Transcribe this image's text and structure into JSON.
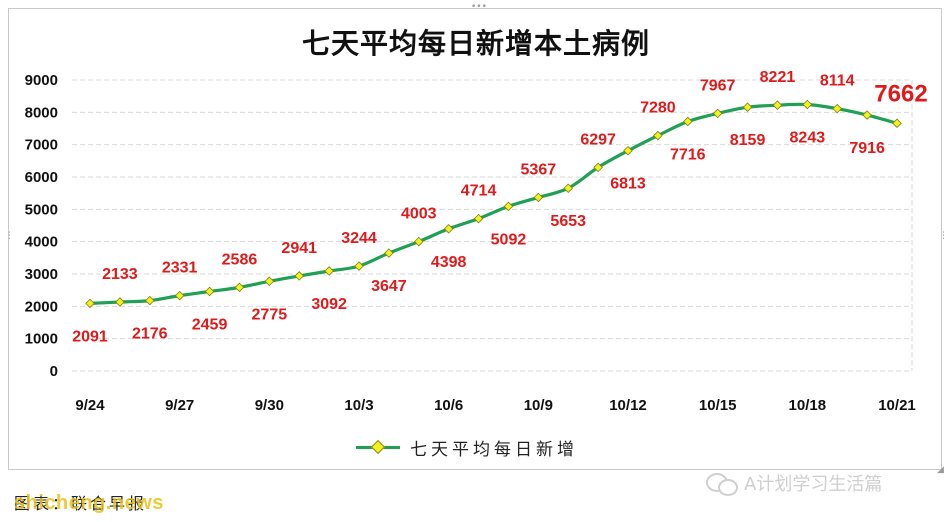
{
  "chart_data": {
    "type": "line",
    "title": "七天平均每日新增本土病例",
    "categories": [
      "9/24",
      "9/25",
      "9/26",
      "9/27",
      "9/28",
      "9/29",
      "9/30",
      "10/1",
      "10/2",
      "10/3",
      "10/4",
      "10/5",
      "10/6",
      "10/7",
      "10/8",
      "10/9",
      "10/10",
      "10/11",
      "10/12",
      "10/13",
      "10/14",
      "10/15",
      "10/16",
      "10/17",
      "10/18",
      "10/19",
      "10/20",
      "10/21"
    ],
    "x_tick_labels": [
      "9/24",
      "9/27",
      "9/30",
      "10/3",
      "10/6",
      "10/9",
      "10/12",
      "10/15",
      "10/18",
      "10/21"
    ],
    "series": [
      {
        "name": "七天平均每日新增",
        "color": "#1fa055",
        "marker_color": "#f2f21a",
        "values": [
          2091,
          2133,
          2176,
          2331,
          2459,
          2586,
          2775,
          2941,
          3092,
          3244,
          3647,
          4003,
          4398,
          4714,
          5092,
          5367,
          5653,
          6297,
          6813,
          7280,
          7716,
          7967,
          8159,
          8221,
          8243,
          8114,
          7916,
          7662
        ]
      }
    ],
    "ylim": [
      0,
      9000
    ],
    "yticks": [
      0,
      1000,
      2000,
      3000,
      4000,
      5000,
      6000,
      7000,
      8000,
      9000
    ],
    "grid": true,
    "legend": "bottom",
    "xlabel": "",
    "ylabel": ""
  },
  "source_text": "图表：联合早报",
  "watermark_site": "shicheng.news",
  "watermark_wechat": "A计划学习生活篇"
}
